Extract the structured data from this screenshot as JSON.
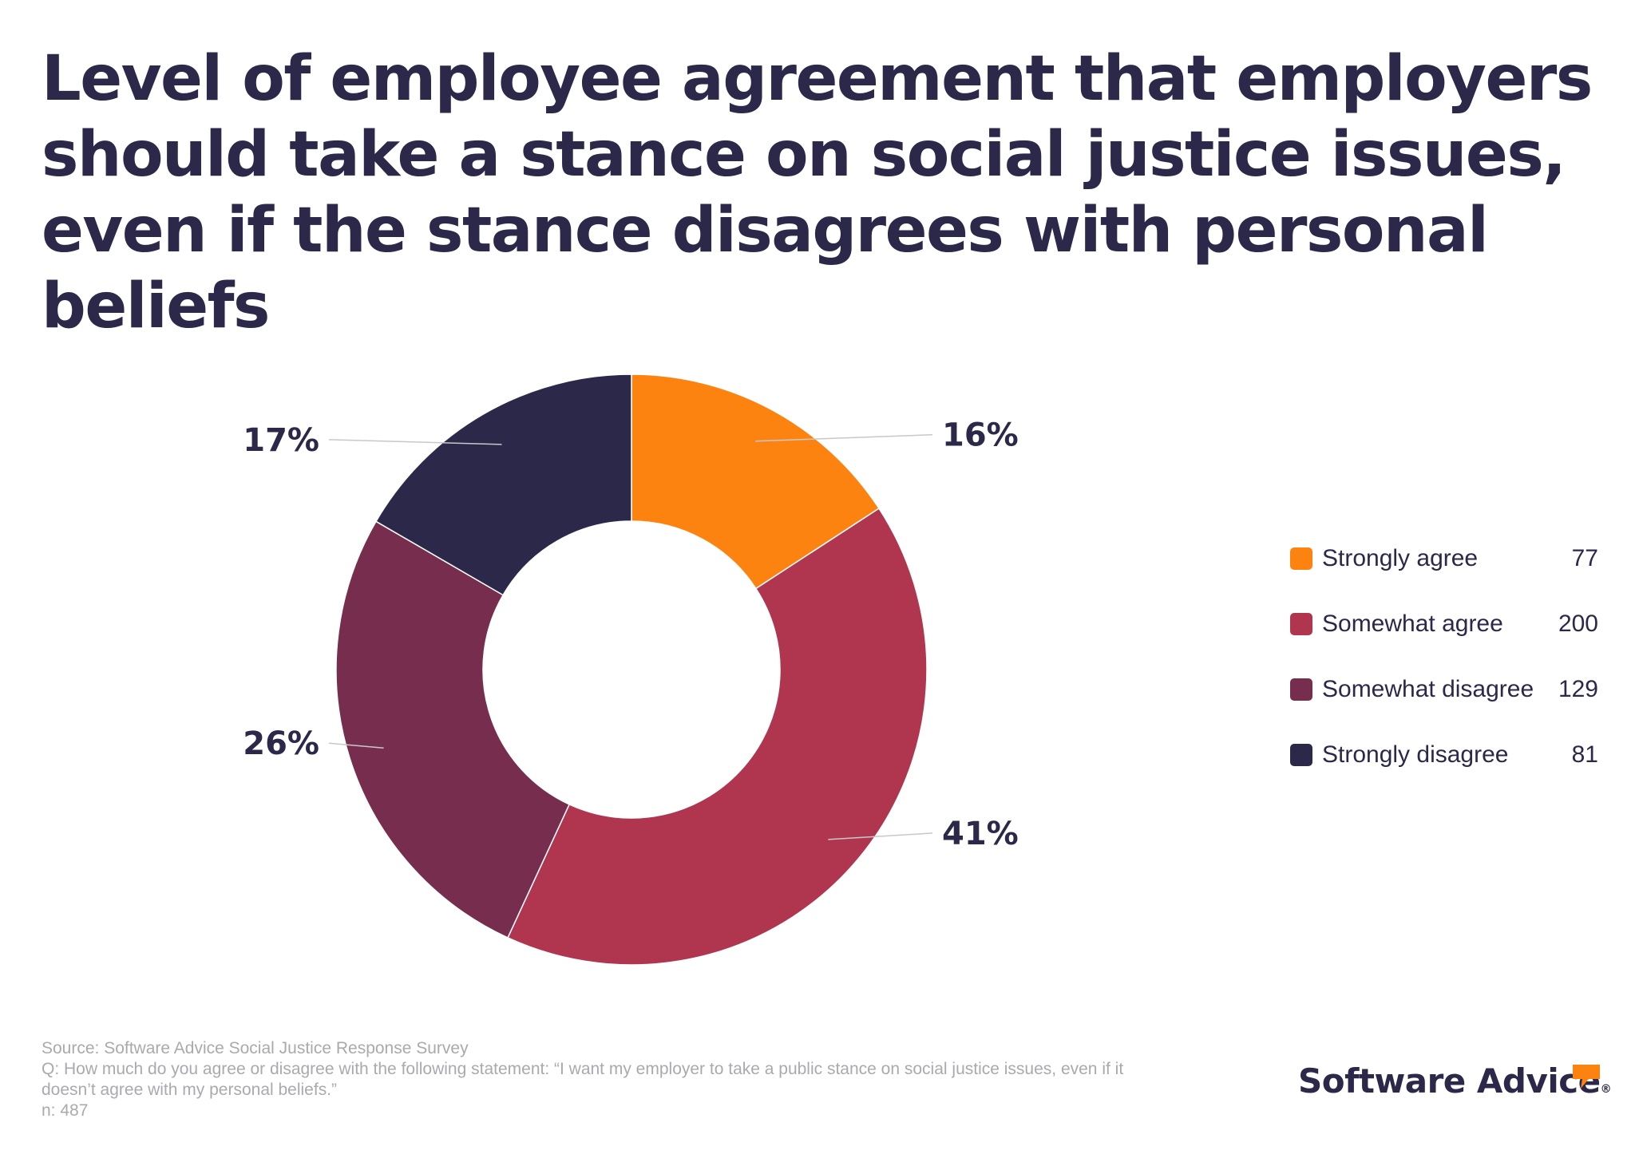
{
  "title": "Level of employee agreement that employers should take a stance on social justice issues, even if the stance disagrees with personal beliefs",
  "chart_data": {
    "type": "pie",
    "donut": true,
    "title": "Level of employee agreement that employers should take a stance on social justice issues, even if the stance disagrees with personal beliefs",
    "categories": [
      "Strongly agree",
      "Somewhat agree",
      "Somewhat disagree",
      "Strongly disagree"
    ],
    "values": [
      77,
      200,
      129,
      81
    ],
    "percent_labels": [
      "16%",
      "41%",
      "26%",
      "17%"
    ],
    "colors": [
      "#fd8311",
      "#b0364f",
      "#762d4e",
      "#2b284a"
    ],
    "start_angle": "top",
    "direction": "clockwise",
    "legend": {
      "placement": "right",
      "items": [
        {
          "label": "Strongly agree",
          "value": "77",
          "color": "#fd8311"
        },
        {
          "label": "Somewhat agree",
          "value": "200",
          "color": "#b0364f"
        },
        {
          "label": "Somewhat disagree",
          "value": "129",
          "color": "#762d4e"
        },
        {
          "label": "Strongly disagree",
          "value": "81",
          "color": "#2b284a"
        }
      ]
    }
  },
  "footnote": {
    "source": "Source: Software Advice Social Justice Response Survey",
    "question": "Q: How much do you agree or disagree with the following statement: “I want my employer to take a public stance on social justice issues, even if it doesn’t agree with my personal beliefs.”",
    "n": "n: 487"
  },
  "brand": {
    "name": "Software Advice",
    "registered_mark": "®",
    "accent_color": "#fd8311"
  }
}
